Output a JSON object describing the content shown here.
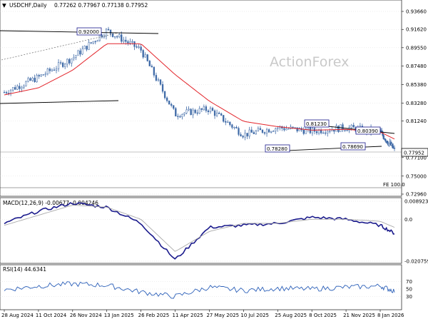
{
  "colors": {
    "candle_up": "#3f6aa7",
    "candle_down": "#3f6aa7",
    "ma_line": "#e3252b",
    "macd_line": "#1a1a8c",
    "signal_line": "#a9a9a9",
    "rsi_line": "#2b5fb8",
    "trendline": "#000000",
    "grid": "#d4d4d4",
    "level_box": "#1a1a8c"
  },
  "header": {
    "symbol_label": "USDCHF,Daily",
    "ohlc": "0.77262 0.77967 0.77138 0.77952",
    "watermark": "ActionForex"
  },
  "chart_data": [
    {
      "type": "candlestick",
      "title": "USDCHF,Daily",
      "x_labels": [
        "28 Aug 2024",
        "11 Oct 2024",
        "26 Nov 2024",
        "13 Jan 2025",
        "26 Feb 2025",
        "11 Apr 2025",
        "27 May 2025",
        "10 Jul 2025",
        "25 Aug 2025",
        "8 Oct 2025",
        "21 Nov 2025",
        "8 Jan 2026"
      ],
      "y_ticks": [
        "0.93660",
        "0.91620",
        "0.89550",
        "0.87480",
        "0.85380",
        "0.83280",
        "0.81240",
        "0.77952",
        "0.77100",
        "0.75000",
        "0.72960"
      ],
      "ylim": [
        0.7296,
        0.9366
      ],
      "current_price": "0.77952",
      "close_anchors": [
        {
          "date": "28 Aug 2024",
          "close": 0.845
        },
        {
          "date": "11 Oct 2024",
          "close": 0.862
        },
        {
          "date": "26 Nov 2024",
          "close": 0.884
        },
        {
          "date": "13 Jan 2025",
          "close": 0.915
        },
        {
          "date": "26 Feb 2025",
          "close": 0.893
        },
        {
          "date": "11 Apr 2025",
          "close": 0.82
        },
        {
          "date": "27 May 2025",
          "close": 0.826
        },
        {
          "date": "10 Jul 2025",
          "close": 0.797
        },
        {
          "date": "25 Aug 2025",
          "close": 0.805
        },
        {
          "date": "8 Oct 2025",
          "close": 0.801
        },
        {
          "date": "21 Nov 2025",
          "close": 0.805
        },
        {
          "date": "8 Jan 2026",
          "close": 0.8
        },
        {
          "date": "latest",
          "close": 0.7795
        }
      ],
      "series": [
        {
          "name": "moving average",
          "values": [
            0.842,
            0.85,
            0.87,
            0.9,
            0.9,
            0.865,
            0.835,
            0.812,
            0.806,
            0.802,
            0.803,
            0.8,
            0.792
          ]
        }
      ],
      "level_labels": [
        "0.92000",
        "0.81230",
        "0.80390",
        "0.78280",
        "0.78690"
      ],
      "annotation": "FE 100.0"
    },
    {
      "type": "line",
      "title": "MACD(12,26,9) -0.00677 -0.004246",
      "y_ticks": [
        "0.008923",
        "0.0",
        "-0.020759"
      ],
      "ylim": [
        -0.020759,
        0.008923
      ],
      "series": [
        {
          "name": "MACD",
          "values": [
            -0.002,
            0.004,
            0.008,
            0.006,
            -0.002,
            -0.02,
            -0.004,
            -0.003,
            -0.002,
            0.001,
            0.0,
            -0.003,
            -0.007
          ]
        },
        {
          "name": "Signal",
          "values": [
            -0.003,
            0.002,
            0.007,
            0.006,
            0.0,
            -0.016,
            -0.006,
            -0.002,
            -0.002,
            0.0,
            0.0,
            -0.001,
            -0.004
          ]
        }
      ]
    },
    {
      "type": "line",
      "title": "RSI(14) 44.6341",
      "y_ticks": [
        "70",
        "50",
        "30"
      ],
      "ylim": [
        0,
        100
      ],
      "series": [
        {
          "name": "RSI",
          "values": [
            48,
            58,
            64,
            60,
            42,
            30,
            55,
            46,
            52,
            50,
            55,
            58,
            44.6
          ]
        }
      ]
    }
  ]
}
